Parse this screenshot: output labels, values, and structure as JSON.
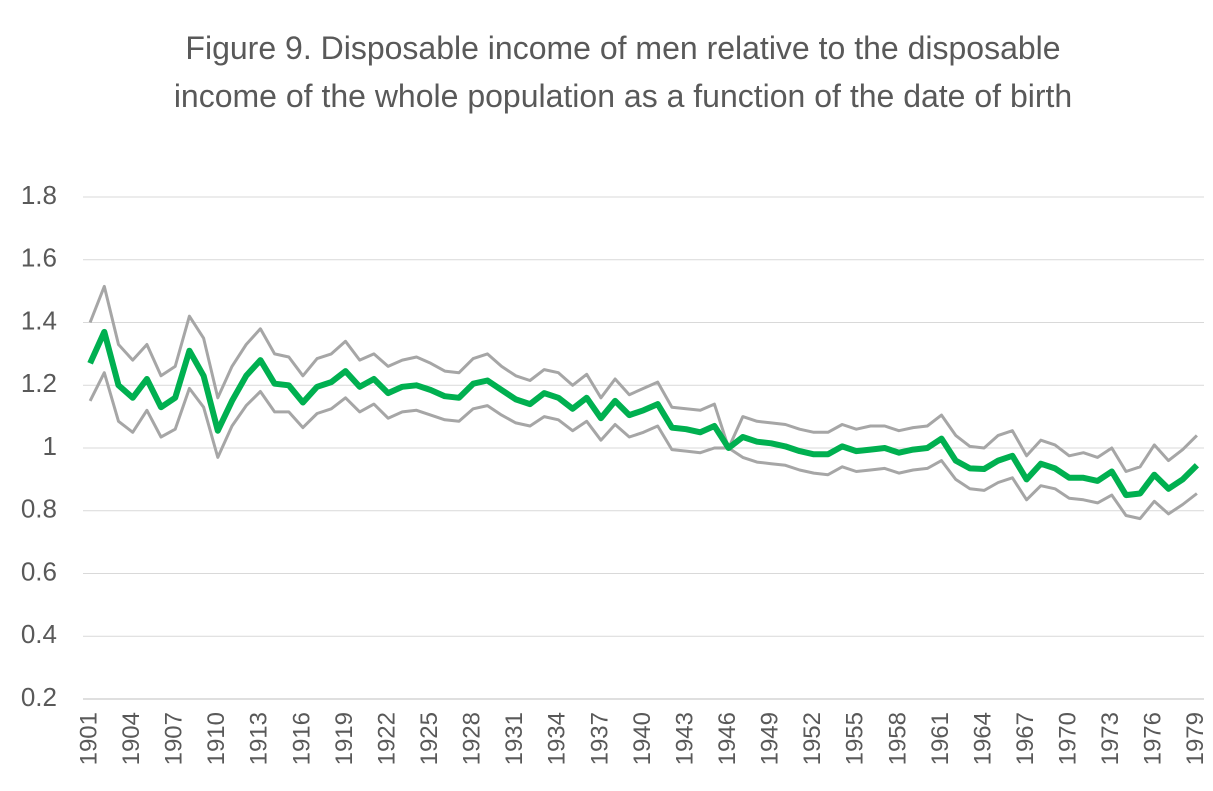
{
  "chart_data": {
    "type": "line",
    "title": "Figure 9. Disposable income of men relative to the disposable income of the whole population as a function of the date of birth",
    "categories": [
      "1901",
      null,
      null,
      "1904",
      null,
      null,
      "1907",
      null,
      null,
      "1910",
      null,
      null,
      "1913",
      null,
      null,
      "1916",
      null,
      null,
      "1919",
      null,
      null,
      "1922",
      null,
      null,
      "1925",
      null,
      null,
      "1928",
      null,
      null,
      "1931",
      null,
      null,
      "1934",
      null,
      null,
      "1937",
      null,
      null,
      "1940",
      null,
      null,
      "1943",
      null,
      null,
      "1946",
      null,
      null,
      "1949",
      null,
      null,
      "1952",
      null,
      null,
      "1955",
      null,
      null,
      "1958",
      null,
      null,
      "1961",
      null,
      null,
      "1964",
      null,
      null,
      "1967",
      null,
      null,
      "1970",
      null,
      null,
      "1973",
      null,
      null,
      "1976",
      null,
      null,
      "1979"
    ],
    "series": [
      {
        "color": "#a6a6a6",
        "width": 3,
        "values": [
          1.4,
          1.515,
          1.33,
          1.28,
          1.33,
          1.23,
          1.26,
          1.42,
          1.35,
          1.16,
          1.26,
          1.33,
          1.38,
          1.3,
          1.29,
          1.23,
          1.285,
          1.3,
          1.34,
          1.28,
          1.3,
          1.26,
          1.28,
          1.29,
          1.27,
          1.245,
          1.24,
          1.285,
          1.3,
          1.26,
          1.23,
          1.215,
          1.25,
          1.24,
          1.2,
          1.235,
          1.16,
          1.22,
          1.17,
          1.19,
          1.21,
          1.13,
          1.125,
          1.12,
          1.14,
          1.0,
          1.1,
          1.085,
          1.08,
          1.075,
          1.06,
          1.05,
          1.05,
          1.075,
          1.06,
          1.07,
          1.07,
          1.055,
          1.065,
          1.07,
          1.105,
          1.04,
          1.005,
          1.0,
          1.04,
          1.055,
          0.975,
          1.025,
          1.01,
          0.975,
          0.985,
          0.97,
          1.0,
          0.925,
          0.94,
          1.01,
          0.96,
          0.995,
          1.04
        ]
      },
      {
        "color": "#a6a6a6",
        "width": 3,
        "values": [
          1.15,
          1.24,
          1.085,
          1.05,
          1.12,
          1.035,
          1.06,
          1.19,
          1.13,
          0.97,
          1.07,
          1.135,
          1.18,
          1.115,
          1.115,
          1.065,
          1.11,
          1.125,
          1.16,
          1.115,
          1.14,
          1.095,
          1.115,
          1.12,
          1.105,
          1.09,
          1.085,
          1.125,
          1.135,
          1.105,
          1.08,
          1.07,
          1.1,
          1.09,
          1.055,
          1.085,
          1.025,
          1.075,
          1.035,
          1.05,
          1.07,
          0.995,
          0.99,
          0.985,
          1.0,
          1.0,
          0.97,
          0.955,
          0.95,
          0.945,
          0.93,
          0.92,
          0.915,
          0.94,
          0.925,
          0.93,
          0.935,
          0.92,
          0.93,
          0.935,
          0.96,
          0.9,
          0.87,
          0.865,
          0.89,
          0.905,
          0.835,
          0.88,
          0.87,
          0.84,
          0.835,
          0.825,
          0.85,
          0.785,
          0.775,
          0.83,
          0.79,
          0.82,
          0.855
        ]
      },
      {
        "color": "#00b050",
        "width": 6,
        "values": [
          1.27,
          1.37,
          1.2,
          1.16,
          1.22,
          1.13,
          1.16,
          1.31,
          1.23,
          1.055,
          1.15,
          1.23,
          1.28,
          1.205,
          1.2,
          1.145,
          1.195,
          1.21,
          1.245,
          1.195,
          1.22,
          1.175,
          1.195,
          1.2,
          1.185,
          1.165,
          1.16,
          1.205,
          1.215,
          1.185,
          1.155,
          1.14,
          1.175,
          1.16,
          1.125,
          1.16,
          1.095,
          1.15,
          1.105,
          1.12,
          1.14,
          1.065,
          1.06,
          1.05,
          1.07,
          1.0,
          1.035,
          1.02,
          1.015,
          1.005,
          0.99,
          0.98,
          0.98,
          1.005,
          0.99,
          0.995,
          1.0,
          0.985,
          0.995,
          1.0,
          1.03,
          0.96,
          0.935,
          0.933,
          0.96,
          0.975,
          0.9,
          0.95,
          0.935,
          0.905,
          0.905,
          0.895,
          0.925,
          0.85,
          0.855,
          0.915,
          0.87,
          0.9,
          0.945
        ]
      }
    ],
    "ylim": [
      0.2,
      1.8
    ],
    "yticks": [
      0.2,
      0.4,
      0.6,
      0.8,
      1,
      1.2,
      1.4,
      1.6,
      1.8
    ],
    "grid": true
  }
}
